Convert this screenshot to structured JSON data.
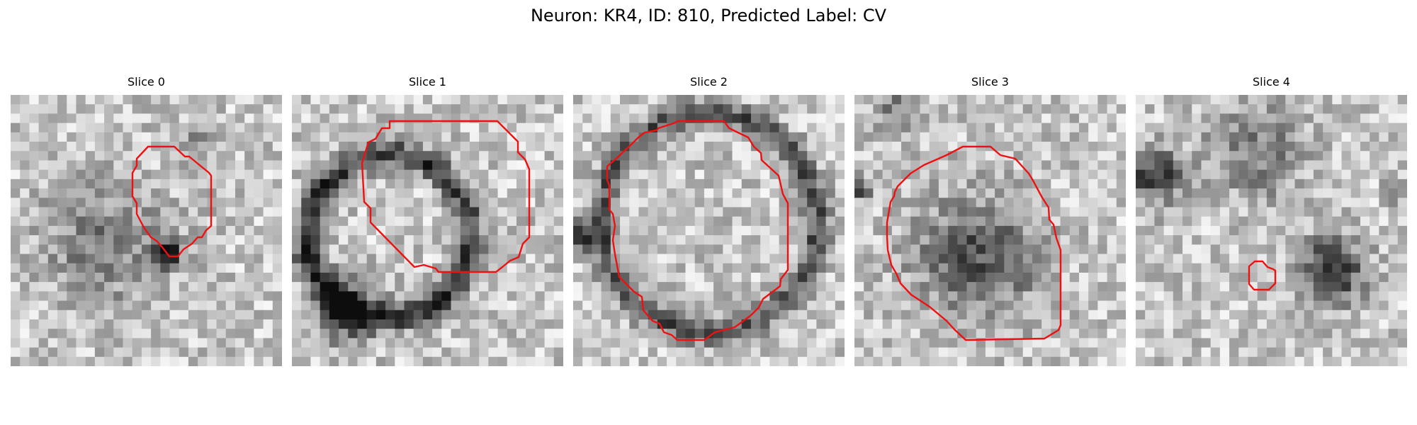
{
  "figure": {
    "title": "Neuron: KR4, ID: 810, Predicted Label: CV",
    "contour_color": "#ee1111",
    "image_colormap": "gray",
    "panels": [
      {
        "title": "Slice 0",
        "grid_cells": 29
      },
      {
        "title": "Slice 1",
        "grid_cells": 29
      },
      {
        "title": "Slice 2",
        "grid_cells": 29
      },
      {
        "title": "Slice 3",
        "grid_cells": 29
      },
      {
        "title": "Slice 4",
        "grid_cells": 29
      }
    ]
  }
}
